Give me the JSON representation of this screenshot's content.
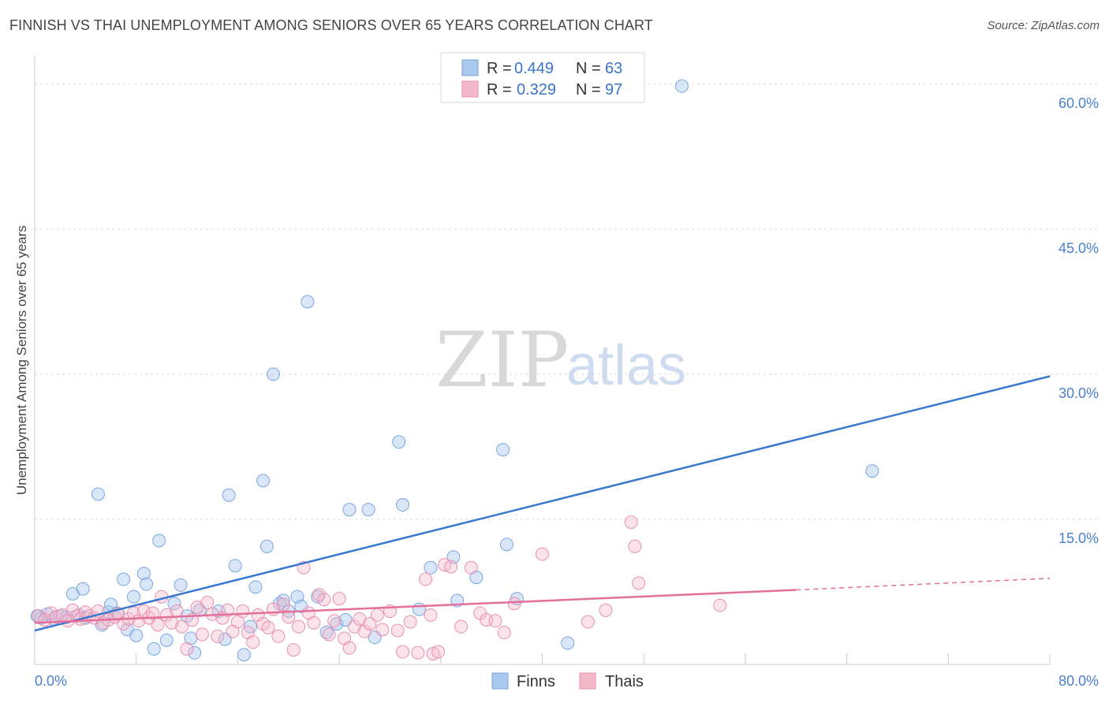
{
  "title": "FINNISH VS THAI UNEMPLOYMENT AMONG SENIORS OVER 65 YEARS CORRELATION CHART",
  "source": "Source: ZipAtlas.com",
  "watermark": {
    "zip": "ZIP",
    "atlas": "atlas"
  },
  "legend": {
    "r_label": "R =",
    "n_label": "N =",
    "finns": {
      "r": "0.449",
      "n": "63"
    },
    "thais": {
      "r": "0.329",
      "n": "97"
    }
  },
  "bottom_legend": {
    "finns": "Finns",
    "thais": "Thais"
  },
  "chart_data": {
    "type": "scatter",
    "ylabel": "Unemployment Among Seniors over 65 years",
    "xlim": [
      0,
      80
    ],
    "ylim": [
      0,
      63
    ],
    "x_tick_labels": [
      "0.0%",
      "80.0%"
    ],
    "y_ticks": [
      15,
      30,
      45,
      60
    ],
    "y_tick_labels": [
      "15.0%",
      "30.0%",
      "45.0%",
      "60.0%"
    ],
    "grid": "horizontal dashed",
    "colors": {
      "finns": "#a9c8ee",
      "finns_line": "#3a78d0",
      "thais": "#f5b8cb",
      "thais_line": "#e46f9a"
    },
    "series": [
      {
        "name": "Finns",
        "trend": {
          "x": [
            0,
            80
          ],
          "y": [
            3.5,
            29.8
          ]
        },
        "points": [
          [
            0.2,
            5
          ],
          [
            0.5,
            4.8
          ],
          [
            1,
            5.2
          ],
          [
            1.5,
            4.7
          ],
          [
            2,
            5
          ],
          [
            2.5,
            4.9
          ],
          [
            3,
            7.3
          ],
          [
            3.5,
            5.1
          ],
          [
            3.8,
            7.8
          ],
          [
            4,
            4.8
          ],
          [
            5,
            17.6
          ],
          [
            5.3,
            4.1
          ],
          [
            5.8,
            5.4
          ],
          [
            6,
            6.2
          ],
          [
            6.5,
            5.3
          ],
          [
            7,
            8.8
          ],
          [
            7.3,
            3.6
          ],
          [
            7.8,
            7
          ],
          [
            8,
            3
          ],
          [
            8.6,
            9.4
          ],
          [
            8.8,
            8.3
          ],
          [
            9.4,
            1.6
          ],
          [
            9.8,
            12.8
          ],
          [
            10.4,
            2.5
          ],
          [
            11,
            6.3
          ],
          [
            11.5,
            8.2
          ],
          [
            12,
            5
          ],
          [
            12.3,
            2.7
          ],
          [
            12.6,
            1.2
          ],
          [
            13,
            5.6
          ],
          [
            14.5,
            5.5
          ],
          [
            15,
            2.6
          ],
          [
            15.3,
            17.5
          ],
          [
            15.8,
            10.2
          ],
          [
            16.5,
            1
          ],
          [
            17,
            3.9
          ],
          [
            17.4,
            8
          ],
          [
            18,
            19
          ],
          [
            18.3,
            12.2
          ],
          [
            18.8,
            30
          ],
          [
            19.3,
            6.3
          ],
          [
            19.6,
            6.6
          ],
          [
            20,
            5.5
          ],
          [
            20.7,
            7
          ],
          [
            21,
            6
          ],
          [
            21.5,
            37.5
          ],
          [
            22.3,
            7
          ],
          [
            23,
            3.3
          ],
          [
            23.8,
            4.2
          ],
          [
            24.5,
            4.6
          ],
          [
            24.8,
            16
          ],
          [
            26.3,
            16
          ],
          [
            26.8,
            2.8
          ],
          [
            28.7,
            23
          ],
          [
            29,
            16.5
          ],
          [
            30.3,
            5.7
          ],
          [
            31.2,
            10
          ],
          [
            33,
            11.1
          ],
          [
            33.3,
            6.6
          ],
          [
            34.8,
            9
          ],
          [
            36.9,
            22.2
          ],
          [
            37.2,
            12.4
          ],
          [
            38,
            6.8
          ],
          [
            42,
            2.2
          ],
          [
            51,
            59.8
          ],
          [
            66,
            20
          ]
        ]
      },
      {
        "name": "Thais",
        "trend": {
          "x": [
            0,
            60
          ],
          "y": [
            4.3,
            7.7
          ]
        },
        "trend_dashed": {
          "x": [
            60,
            80
          ],
          "y": [
            7.7,
            8.9
          ]
        },
        "points": [
          [
            0.3,
            5
          ],
          [
            0.8,
            4.6
          ],
          [
            1.3,
            5.3
          ],
          [
            1.7,
            4.9
          ],
          [
            2.2,
            5.1
          ],
          [
            2.6,
            4.5
          ],
          [
            3,
            5.6
          ],
          [
            3.3,
            5
          ],
          [
            3.6,
            4.7
          ],
          [
            4,
            5.4
          ],
          [
            4.3,
            5
          ],
          [
            4.7,
            4.8
          ],
          [
            5,
            5.5
          ],
          [
            5.4,
            4.3
          ],
          [
            5.8,
            4.6
          ],
          [
            6.3,
            4.9
          ],
          [
            6.6,
            5.2
          ],
          [
            7,
            4.2
          ],
          [
            7.4,
            4.7
          ],
          [
            7.8,
            5.3
          ],
          [
            8.2,
            4.5
          ],
          [
            8.6,
            5.5
          ],
          [
            9,
            4.8
          ],
          [
            9.3,
            5.3
          ],
          [
            9.7,
            4.1
          ],
          [
            10,
            7
          ],
          [
            10.4,
            5.1
          ],
          [
            10.8,
            4.3
          ],
          [
            11.2,
            5.5
          ],
          [
            11.6,
            3.9
          ],
          [
            12,
            1.6
          ],
          [
            12.4,
            4.6
          ],
          [
            12.8,
            5.9
          ],
          [
            13.2,
            3.1
          ],
          [
            13.6,
            6.4
          ],
          [
            14,
            5.2
          ],
          [
            14.4,
            2.9
          ],
          [
            14.8,
            4.8
          ],
          [
            15.2,
            5.6
          ],
          [
            15.6,
            3.4
          ],
          [
            16,
            4.4
          ],
          [
            16.4,
            5.5
          ],
          [
            16.8,
            3.3
          ],
          [
            17.2,
            2.3
          ],
          [
            17.6,
            5.1
          ],
          [
            18,
            4.2
          ],
          [
            18.4,
            3.8
          ],
          [
            18.8,
            5.7
          ],
          [
            19.2,
            2.9
          ],
          [
            19.6,
            6.2
          ],
          [
            20,
            4.9
          ],
          [
            20.4,
            1.5
          ],
          [
            20.8,
            3.9
          ],
          [
            21.2,
            10
          ],
          [
            21.6,
            5.3
          ],
          [
            22,
            4.3
          ],
          [
            22.4,
            7.2
          ],
          [
            22.8,
            6.7
          ],
          [
            23.2,
            3.1
          ],
          [
            23.6,
            4.5
          ],
          [
            24,
            6.8
          ],
          [
            24.4,
            2.7
          ],
          [
            24.8,
            1.7
          ],
          [
            25.2,
            3.9
          ],
          [
            25.6,
            4.7
          ],
          [
            26,
            3.4
          ],
          [
            26.4,
            4.2
          ],
          [
            27,
            5.1
          ],
          [
            27.4,
            3.6
          ],
          [
            28,
            5.5
          ],
          [
            28.6,
            3.5
          ],
          [
            29,
            1.3
          ],
          [
            29.6,
            4.4
          ],
          [
            30.2,
            1.2
          ],
          [
            30.8,
            8.8
          ],
          [
            31.2,
            5.1
          ],
          [
            31.4,
            1.1
          ],
          [
            31.8,
            1.3
          ],
          [
            32.3,
            10.3
          ],
          [
            32.8,
            10.1
          ],
          [
            33.6,
            3.9
          ],
          [
            34.4,
            10
          ],
          [
            35.1,
            5.3
          ],
          [
            35.6,
            4.6
          ],
          [
            36.3,
            4.5
          ],
          [
            37,
            3.3
          ],
          [
            37.8,
            6.3
          ],
          [
            40,
            11.4
          ],
          [
            43.6,
            4.4
          ],
          [
            45,
            5.6
          ],
          [
            47,
            14.7
          ],
          [
            47.3,
            12.2
          ],
          [
            47.6,
            8.4
          ],
          [
            54,
            6.1
          ]
        ]
      }
    ]
  }
}
